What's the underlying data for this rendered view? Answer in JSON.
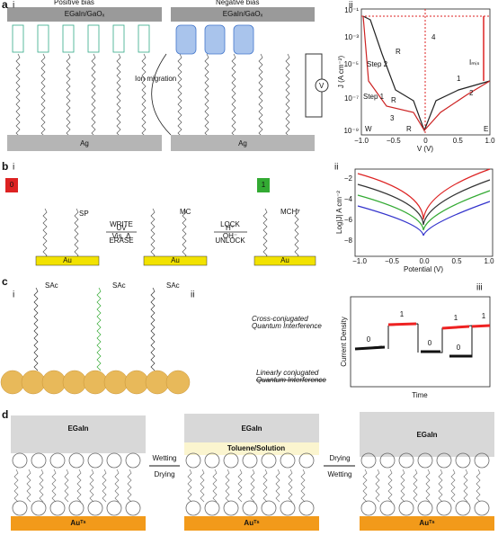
{
  "panel_a": {
    "label": "a",
    "i": {
      "label": "i",
      "left_title": "Positive bias",
      "right_title": "Negative bias",
      "electrode": [
        "EGaIn/GaOₓ",
        "EGaIn/GaOₓ"
      ],
      "bottom": [
        "Ag",
        "Ag"
      ],
      "annotation": "Ion migration",
      "meter": "V"
    },
    "ii": {
      "label": "ii",
      "ylabel": "J (A cm⁻²)",
      "xlabel": "V (V)",
      "yticks": [
        "10⁻¹",
        "10⁻³",
        "10⁻⁵",
        "10⁻⁷",
        "10⁻⁹"
      ],
      "xticks": [
        "−1.0",
        "−0.5",
        "0",
        "0.5",
        "1.0"
      ],
      "notes": [
        "R",
        "Step 2",
        "4",
        "Iₘᵢₛ",
        "Step 1",
        "R",
        "1",
        "2",
        "3",
        "W",
        "R",
        "E"
      ]
    }
  },
  "panel_b": {
    "label": "b",
    "i": {
      "label": "i",
      "states": [
        "0",
        "1"
      ],
      "molecules": [
        "SP",
        "MC",
        "MCH⁺"
      ],
      "left_arrow": [
        "WRITE",
        "UV",
        "Vis, Δ",
        "ERASE"
      ],
      "right_arrow": [
        "LOCK",
        "H⁺",
        "OH⁻",
        "UNLOCK"
      ],
      "substrate": [
        "Au",
        "Au",
        "Au"
      ]
    },
    "ii": {
      "label": "ii",
      "ylabel": "Log|J| A cm⁻²",
      "xlabel": "Potential (V)",
      "yticks": [
        "−2",
        "−4",
        "−6",
        "−8"
      ],
      "xticks": [
        "−1.0",
        "−0.5",
        "0.0",
        "0.5",
        "1.0"
      ]
    }
  },
  "panel_c": {
    "label": "c",
    "i": {
      "label": "i",
      "groups": [
        "SAc",
        "SAc",
        "SAc"
      ]
    },
    "ii": {
      "label": "ii",
      "top": [
        "Cross-conjugated",
        "Quantum Interference"
      ],
      "bottom": [
        "Linearly conjugated",
        "Quantum Interference"
      ]
    },
    "iii": {
      "label": "iii",
      "ylabel": "Current Density",
      "xlabel": "Time",
      "states": [
        "0",
        "1",
        "0",
        "1",
        "0",
        "1"
      ]
    }
  },
  "panel_d": {
    "label": "d",
    "electrode": [
      "EGaIn",
      "EGaIn",
      "EGaIn"
    ],
    "left_arrow": [
      "Wetting",
      "Drying"
    ],
    "solution": "Toluene/Solution",
    "right_arrow": [
      "Drying",
      "Wetting"
    ],
    "substrate": [
      "Auᵀˢ",
      "Auᵀˢ",
      "Auᵀˢ"
    ]
  }
}
